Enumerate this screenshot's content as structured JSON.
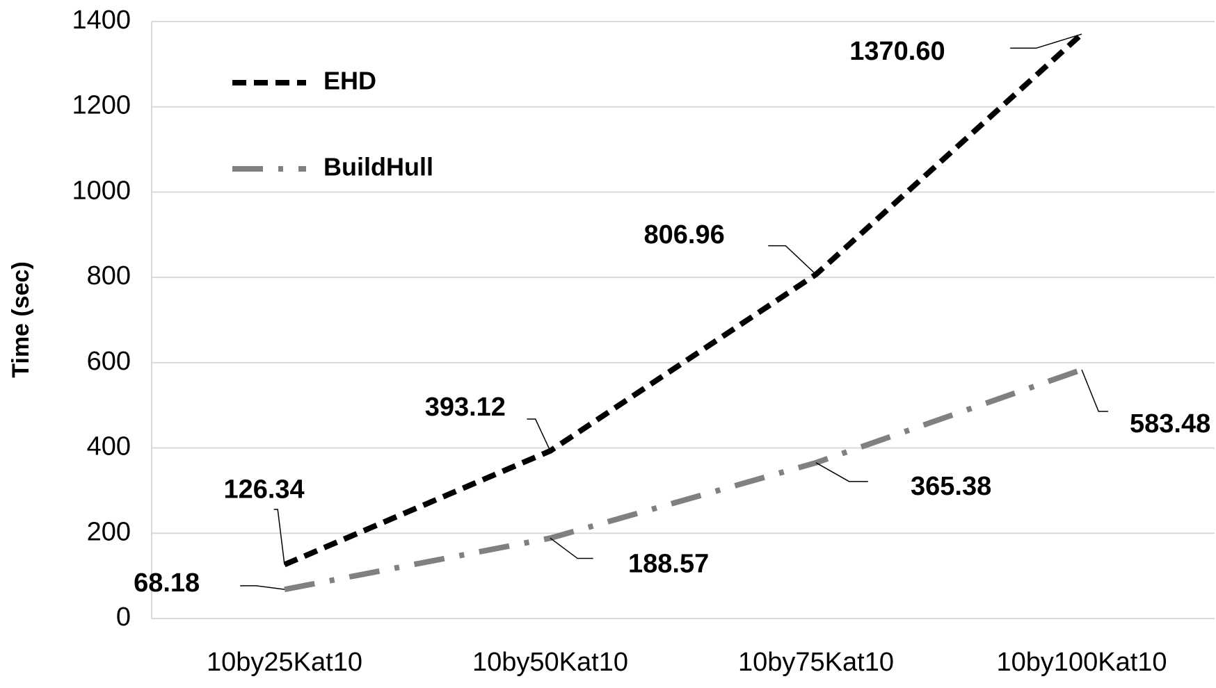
{
  "chart_data": {
    "type": "line",
    "y_label": "Time (sec)",
    "categories": [
      "10by25Kat10",
      "10by50Kat10",
      "10by75Kat10",
      "10by100Kat10"
    ],
    "series": [
      {
        "name": "EHD",
        "color": "#000000",
        "values": [
          126.34,
          393.12,
          806.96,
          1370.6
        ],
        "value_labels": [
          "126.34",
          "393.12",
          "806.96",
          "1370.60"
        ]
      },
      {
        "name": "BuildHull",
        "color": "#808080",
        "values": [
          68.18,
          188.57,
          365.38,
          583.48
        ],
        "value_labels": [
          "68.18",
          "188.57",
          "365.38",
          "583.48"
        ]
      }
    ],
    "ylim": [
      0,
      1400
    ],
    "yticks": [
      0,
      200,
      400,
      600,
      800,
      1000,
      1200,
      1400
    ],
    "grid": true,
    "legend": "upper left"
  }
}
